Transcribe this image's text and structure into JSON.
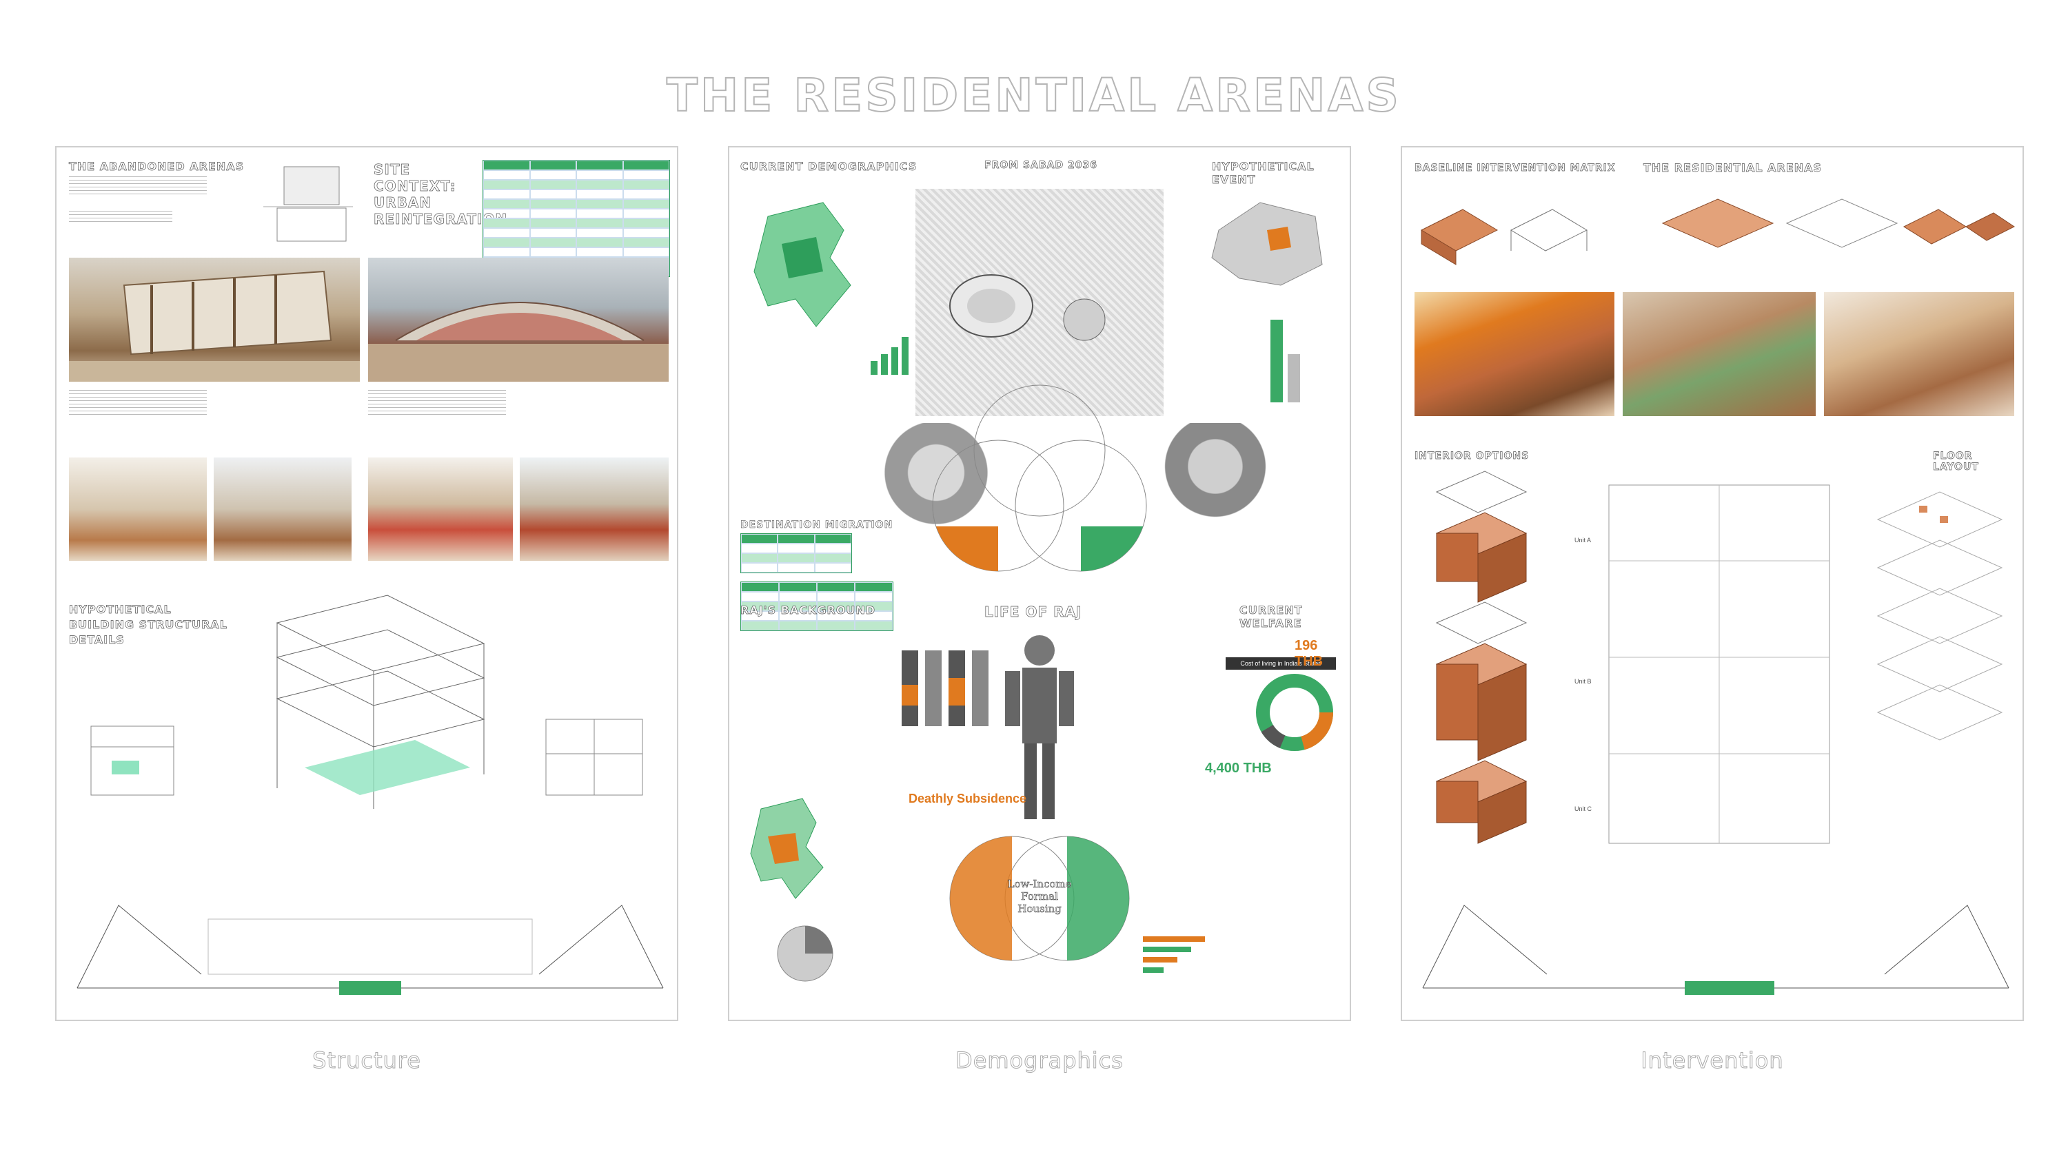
{
  "page": {
    "title": "THE RESIDENTIAL ARENAS"
  },
  "boards": [
    {
      "caption": "Structure",
      "sections": {
        "abandoned": "THE ABANDONED ARENAS",
        "site": "SITE CONTEXT: URBAN REINTEGRATION",
        "hypothetical": "HYPOTHETICAL BUILDING STRUCTURAL DETAILS"
      }
    },
    {
      "caption": "Demographics",
      "sections": {
        "demographics": "CURRENT DEMOGRAPHICS",
        "from": "FROM SABAD 2036",
        "event": "HYPOTHETICAL EVENT",
        "background": "RAJ'S BACKGROUND",
        "life": "LIFE OF RAJ",
        "welfare": "CURRENT WELFARE",
        "migration": "DESTINATION MIGRATION",
        "subsidence": "Deathly Subsidence",
        "venn": "Low-Income Formal Housing",
        "cost": "Cost of living in India's States",
        "thb_high": "196 THB",
        "thb_low": "4,400 THB"
      }
    },
    {
      "caption": "Intervention",
      "sections": {
        "strategy": "BASELINE INTERVENTION MATRIX",
        "title": "THE RESIDENTIAL ARENAS",
        "interior": "INTERIOR OPTIONS",
        "floor": "FLOOR LAYOUT",
        "unit_a": "Unit A",
        "unit_b": "Unit B",
        "unit_c": "Unit C"
      }
    }
  ],
  "colors": {
    "accent_green": "#3aa965",
    "accent_orange": "#e07a1f",
    "accent_terracotta": "#c0683a"
  }
}
